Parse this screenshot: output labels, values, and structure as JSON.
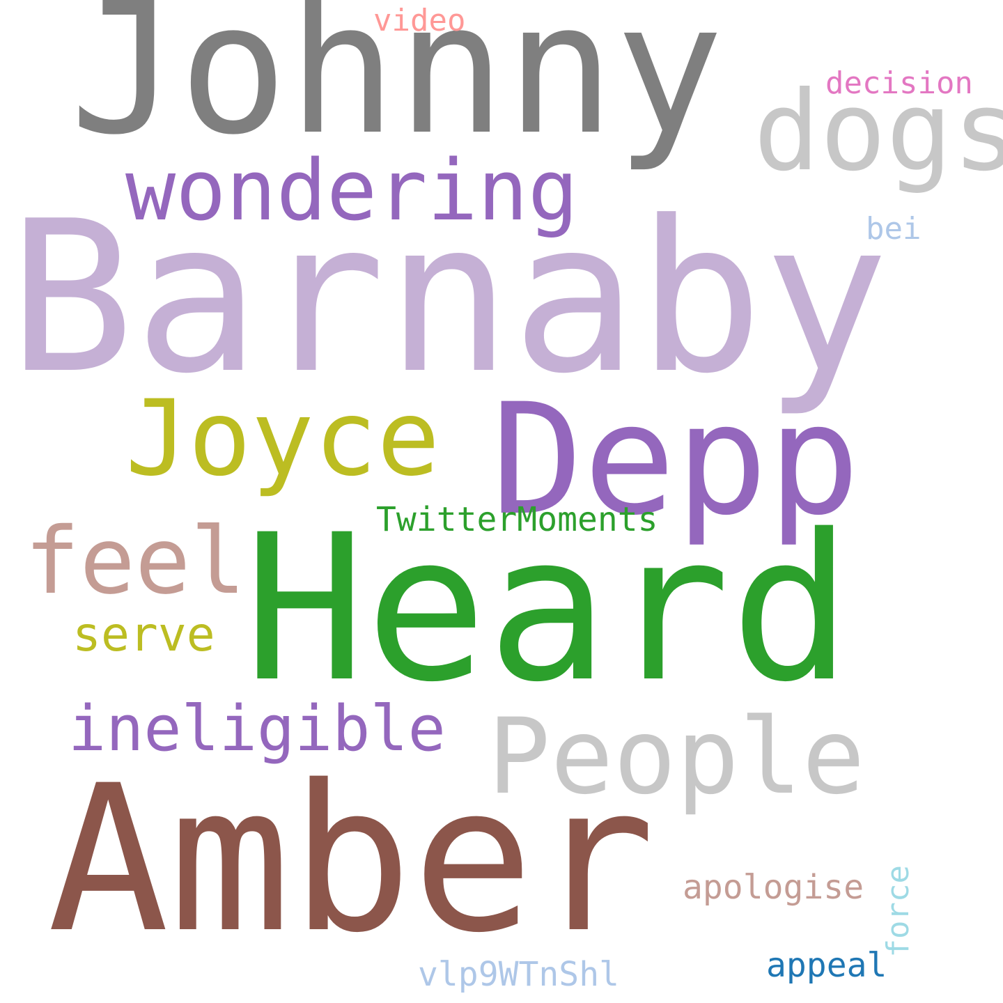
{
  "words": [
    {
      "text": "Barnaby",
      "color": "#c5b0d5"
    },
    {
      "text": "Heard",
      "color": "#2ca02c"
    },
    {
      "text": "Amber",
      "color": "#8c564b"
    },
    {
      "text": "Johnny",
      "color": "#7f7f7f"
    },
    {
      "text": "Depp",
      "color": "#9467bd"
    },
    {
      "text": "dogs",
      "color": "#c7c7c7"
    },
    {
      "text": "wondering",
      "color": "#9467bd"
    },
    {
      "text": "Joyce",
      "color": "#bcbd22"
    },
    {
      "text": "People",
      "color": "#c7c7c7"
    },
    {
      "text": "feel",
      "color": "#c49c94"
    },
    {
      "text": "ineligible",
      "color": "#9467bd"
    },
    {
      "text": "serve",
      "color": "#bcbd22"
    },
    {
      "text": "TwitterMoments",
      "color": "#2ca02c"
    },
    {
      "text": "apologise",
      "color": "#c49c94"
    },
    {
      "text": "appeal",
      "color": "#1f77b4"
    },
    {
      "text": "vlp9WTnShl",
      "color": "#aec7e8"
    },
    {
      "text": "decision",
      "color": "#e377c2"
    },
    {
      "text": "video",
      "color": "#ff9896"
    },
    {
      "text": "bei",
      "color": "#aec7e8"
    },
    {
      "text": "force",
      "color": "#9edae5"
    }
  ]
}
